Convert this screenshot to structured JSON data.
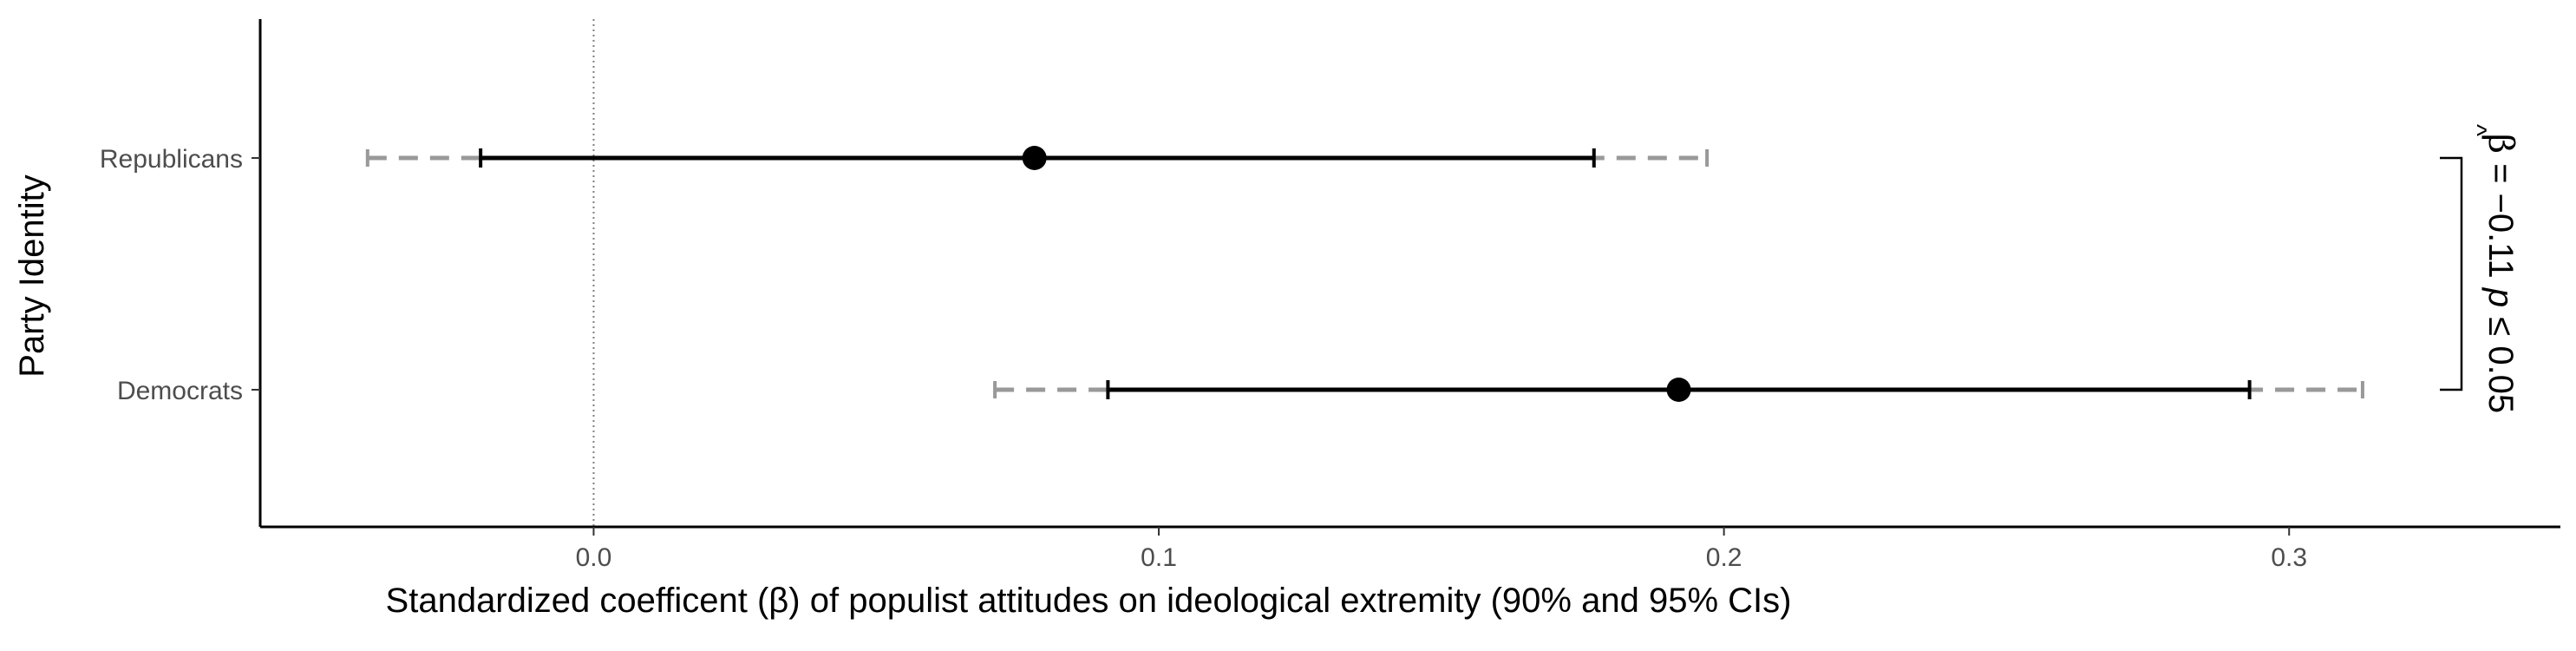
{
  "chart_data": {
    "type": "scatter",
    "subtype": "coefficient-plot",
    "xlabel": "Standardized coefficent (β) of populist attitudes on ideological extremity (90% and 95% CIs)",
    "ylabel": "Party Identity",
    "xlim": [
      -0.059,
      0.348
    ],
    "x_ticks": [
      "0.0",
      "0.1",
      "0.2",
      "0.3"
    ],
    "x_tick_values": [
      0.0,
      0.1,
      0.2,
      0.3
    ],
    "reference_line": 0,
    "categories": [
      "Republicans",
      "Democrats"
    ],
    "series": [
      {
        "estimate": [
          0.078,
          0.192
        ],
        "ci90_low": [
          -0.02,
          0.091
        ],
        "ci90_high": [
          0.177,
          0.293
        ],
        "ci95_low": [
          -0.04,
          0.071
        ],
        "ci95_high": [
          0.197,
          0.313
        ]
      }
    ],
    "annotation": {
      "text": "β̂ = −0.11 p ≤ 0.05",
      "beta_part": "β",
      "value_part": " = −0.11 ",
      "p_part": "p",
      "threshold_part": " ≤ 0.05"
    },
    "colors": {
      "ci90": "#000000",
      "ci95": "#999999",
      "point": "#000000",
      "reference": "#7f7f7f"
    },
    "grid": false
  }
}
